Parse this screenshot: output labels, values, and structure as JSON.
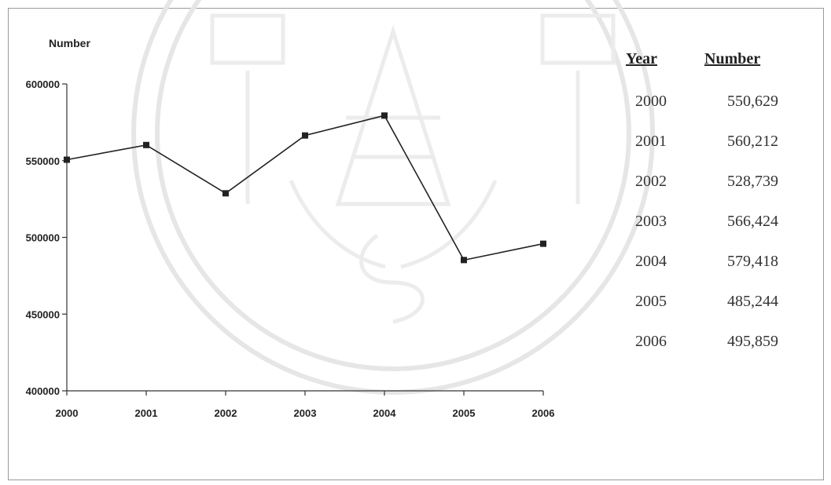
{
  "chart_data": {
    "type": "line",
    "ylabel": "Number",
    "xlabel": "",
    "title": "",
    "x": [
      "2000",
      "2001",
      "2002",
      "2003",
      "2004",
      "2005",
      "2006"
    ],
    "series": [
      {
        "values": [
          550629,
          560212,
          528739,
          566424,
          579418,
          485244,
          495859
        ]
      }
    ],
    "ylim": [
      400000,
      600000
    ],
    "yticks": [
      "400000",
      "450000",
      "500000",
      "550000",
      "600000"
    ],
    "grid": false,
    "marker": "square",
    "line_color": "#222222"
  },
  "table": {
    "header_year": "Year",
    "header_number": "Number",
    "rows": [
      {
        "year": "2000",
        "number": "550,629"
      },
      {
        "year": "2001",
        "number": "560,212"
      },
      {
        "year": "2002",
        "number": "528,739"
      },
      {
        "year": "2003",
        "number": "566,424"
      },
      {
        "year": "2004",
        "number": "579,418"
      },
      {
        "year": "2005",
        "number": "485,244"
      },
      {
        "year": "2006",
        "number": "495,859"
      }
    ]
  }
}
